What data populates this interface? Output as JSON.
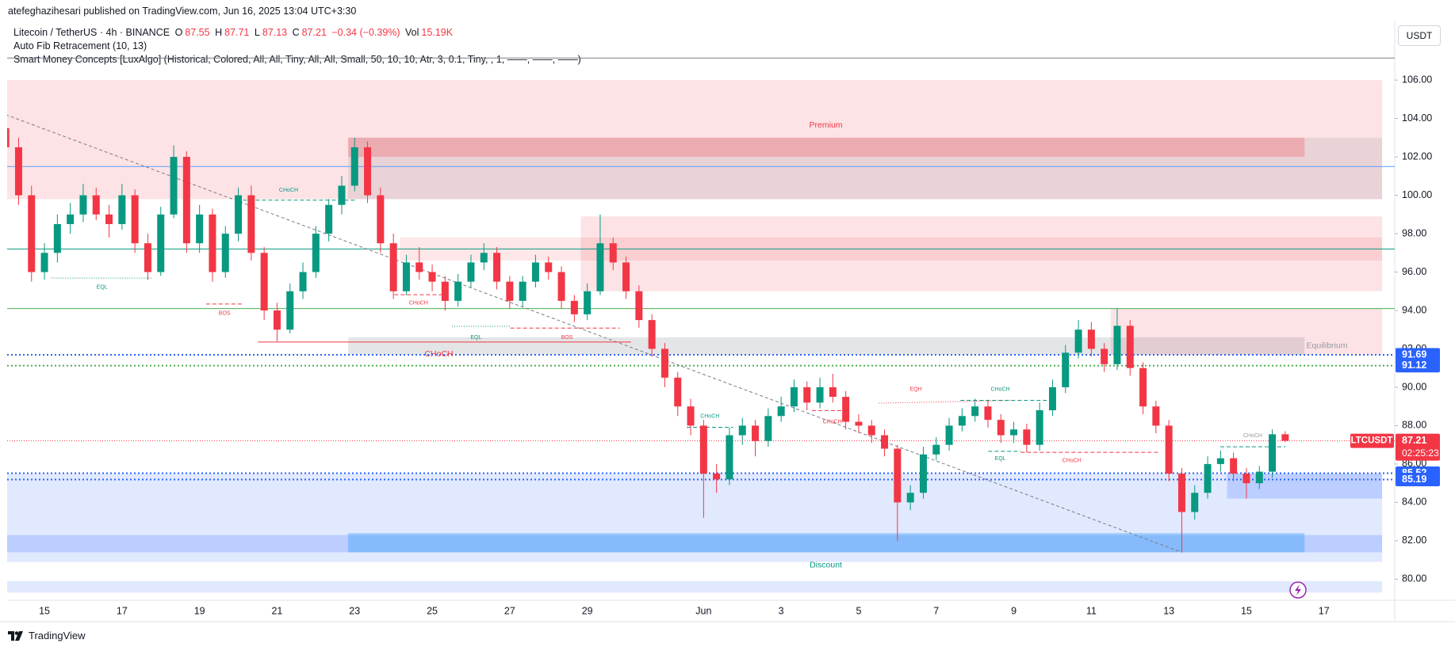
{
  "header": {
    "published": "atefeghazihesari published on TradingView.com, Jun 16, 2025 13:04 UTC+3:30",
    "symbol": "Litecoin / TetherUS · 4h · BINANCE",
    "legend_labels": [
      "O",
      "H",
      "L",
      "C"
    ],
    "change": "−0.34 (−0.39%)",
    "volume_label": "Vol",
    "volume": "15.19K",
    "indicators": [
      "Auto Fib Retracement (10, 13)",
      "Smart Money Concepts [LuxAlgo] (Historical, Colored, All, All, Tiny, All, All, Small, 50, 10, 10, Atr, 3, 0.1, Tiny, , 1, ——, ——, ——)"
    ],
    "currency": "USDT"
  },
  "footer": {
    "brand": "TradingView"
  },
  "chart_data": {
    "type": "candlestick",
    "up_color": "#089981",
    "down_color": "#f23645",
    "categories": [
      null,
      null,
      null,
      "15",
      null,
      null,
      null,
      null,
      null,
      "17",
      null,
      null,
      null,
      null,
      null,
      "19",
      null,
      null,
      null,
      null,
      null,
      "21",
      null,
      null,
      null,
      null,
      null,
      "23",
      null,
      null,
      null,
      null,
      null,
      "25",
      null,
      null,
      null,
      null,
      null,
      "27",
      null,
      null,
      null,
      null,
      null,
      "29",
      null,
      null,
      null,
      null,
      null,
      null,
      null,
      null,
      "Jun",
      null,
      null,
      null,
      null,
      null,
      "3",
      null,
      null,
      null,
      null,
      null,
      "5",
      null,
      null,
      null,
      null,
      null,
      "7",
      null,
      null,
      null,
      null,
      null,
      "9",
      null,
      null,
      null,
      null,
      null,
      "11",
      null,
      null,
      null,
      null,
      null,
      "13",
      null,
      null,
      null,
      null,
      null,
      "15",
      null,
      null,
      null,
      null,
      null,
      "17",
      null,
      null,
      null,
      null
    ],
    "ohlc": [
      [
        103.5,
        106,
        102,
        102.5
      ],
      [
        102.5,
        103,
        99.5,
        100
      ],
      [
        100,
        100.5,
        95.5,
        96
      ],
      [
        96,
        97.5,
        95.6,
        97
      ],
      [
        97,
        99,
        96.5,
        98.5
      ],
      [
        98.5,
        99.6,
        98,
        99
      ],
      [
        99,
        100.6,
        98.6,
        100
      ],
      [
        100,
        100.4,
        98.7,
        99
      ],
      [
        99,
        99.5,
        97.8,
        98.5
      ],
      [
        98.5,
        100.6,
        98.2,
        100
      ],
      [
        100,
        100.3,
        97,
        97.5
      ],
      [
        97.5,
        98,
        95.6,
        96
      ],
      [
        96,
        99.4,
        95.8,
        99
      ],
      [
        99,
        102.6,
        98.8,
        102
      ],
      [
        102,
        102.3,
        97,
        97.5
      ],
      [
        97.5,
        99.5,
        97,
        99
      ],
      [
        99,
        99.3,
        95.5,
        96
      ],
      [
        96,
        98.4,
        95.7,
        98
      ],
      [
        98,
        100.4,
        97.6,
        100
      ],
      [
        100,
        100.5,
        96.6,
        97
      ],
      [
        97,
        97.3,
        93.5,
        94
      ],
      [
        94,
        94.4,
        92.4,
        93
      ],
      [
        93,
        95.4,
        92.8,
        95
      ],
      [
        95,
        96.5,
        94.6,
        96
      ],
      [
        96,
        98.4,
        95.7,
        98
      ],
      [
        98,
        99.8,
        97.6,
        99.5
      ],
      [
        99.5,
        101,
        99,
        100.5
      ],
      [
        100.5,
        103,
        100.2,
        102.5
      ],
      [
        102.5,
        102.8,
        99.6,
        100
      ],
      [
        100,
        100.4,
        97,
        97.5
      ],
      [
        97.5,
        98,
        94.6,
        95
      ],
      [
        95,
        96.9,
        94.8,
        96.5
      ],
      [
        96.5,
        97.3,
        95.6,
        96
      ],
      [
        96,
        96.4,
        95,
        95.5
      ],
      [
        95.5,
        95.8,
        94,
        94.5
      ],
      [
        94.5,
        95.9,
        94.2,
        95.5
      ],
      [
        95.5,
        96.9,
        95.2,
        96.5
      ],
      [
        96.5,
        97.5,
        96.1,
        97
      ],
      [
        97,
        97.3,
        95.1,
        95.5
      ],
      [
        95.5,
        95.8,
        94.1,
        94.5
      ],
      [
        94.5,
        95.8,
        94.2,
        95.5
      ],
      [
        95.5,
        96.9,
        95.2,
        96.5
      ],
      [
        96.5,
        96.8,
        95.6,
        96
      ],
      [
        96,
        96.3,
        94.1,
        94.5
      ],
      [
        94.5,
        94.8,
        93.4,
        93.8
      ],
      [
        93.8,
        95.4,
        93.5,
        95
      ],
      [
        95,
        99,
        94.8,
        97.5
      ],
      [
        97.5,
        97.8,
        96.1,
        96.5
      ],
      [
        96.5,
        96.8,
        94.6,
        95
      ],
      [
        95,
        95.3,
        93.1,
        93.5
      ],
      [
        93.5,
        93.8,
        91.6,
        92
      ],
      [
        92,
        92.3,
        90,
        90.5
      ],
      [
        90.5,
        90.8,
        88.5,
        89
      ],
      [
        89,
        89.4,
        87.5,
        88
      ],
      [
        88,
        88.3,
        83.2,
        85.5
      ],
      [
        85.5,
        86,
        84.5,
        85.2
      ],
      [
        85.2,
        87.9,
        84.9,
        87.5
      ],
      [
        87.5,
        88.4,
        87,
        88
      ],
      [
        88,
        88.3,
        86.4,
        87.2
      ],
      [
        87.2,
        88.9,
        86.9,
        88.5
      ],
      [
        88.5,
        89.5,
        88.2,
        89
      ],
      [
        89,
        90.4,
        88.7,
        90
      ],
      [
        90,
        90.3,
        88.8,
        89.2
      ],
      [
        89.2,
        90.5,
        88.9,
        90
      ],
      [
        90,
        90.7,
        89.2,
        89.5
      ],
      [
        89.5,
        89.8,
        87.8,
        88.2
      ],
      [
        88.2,
        88.6,
        87.6,
        88
      ],
      [
        88,
        88.3,
        87.1,
        87.5
      ],
      [
        87.5,
        87.8,
        86.4,
        86.8
      ],
      [
        86.8,
        87,
        82,
        84
      ],
      [
        84,
        84.9,
        83.6,
        84.5
      ],
      [
        84.5,
        86.9,
        84.2,
        86.5
      ],
      [
        86.5,
        87.4,
        86.2,
        87
      ],
      [
        87,
        88.4,
        86.7,
        88
      ],
      [
        88,
        88.9,
        87.7,
        88.5
      ],
      [
        88.5,
        89.4,
        88.2,
        89
      ],
      [
        89,
        89.3,
        87.9,
        88.3
      ],
      [
        88.3,
        88.6,
        87.1,
        87.5
      ],
      [
        87.5,
        88.2,
        87.1,
        87.8
      ],
      [
        87.8,
        88.1,
        86.6,
        87
      ],
      [
        87,
        89.2,
        86.7,
        88.8
      ],
      [
        88.8,
        90.4,
        88.5,
        90
      ],
      [
        90,
        92.2,
        89.7,
        91.8
      ],
      [
        91.8,
        93.5,
        91.5,
        93
      ],
      [
        93,
        93.4,
        91.6,
        92
      ],
      [
        92,
        92.3,
        90.8,
        91.2
      ],
      [
        91.2,
        94.1,
        90.9,
        93.2
      ],
      [
        93.2,
        93.5,
        90.6,
        91
      ],
      [
        91,
        91.3,
        88.6,
        89
      ],
      [
        89,
        89.3,
        87.6,
        88
      ],
      [
        88,
        88.3,
        85.1,
        85.5
      ],
      [
        85.5,
        85.8,
        81.4,
        83.5
      ],
      [
        83.5,
        84.9,
        83.1,
        84.5
      ],
      [
        84.5,
        86.4,
        84.2,
        86
      ],
      [
        86,
        86.7,
        85.6,
        86.3
      ],
      [
        86.3,
        86.6,
        85.1,
        85.5
      ],
      [
        85.5,
        85.8,
        84.2,
        85
      ],
      [
        85,
        85.9,
        84.7,
        85.6
      ],
      [
        85.6,
        87.8,
        85.3,
        87.55
      ],
      [
        87.55,
        87.71,
        87.13,
        87.21
      ],
      null,
      null,
      null,
      null,
      null,
      null,
      null
    ],
    "ylim": [
      78.9,
      109.1
    ],
    "yticks": [
      {
        "value": 80,
        "label": "80.00"
      },
      {
        "value": 82,
        "label": "82.00"
      },
      {
        "value": 84,
        "label": "84.00"
      },
      {
        "value": 86,
        "label": "86.00"
      },
      {
        "value": 88,
        "label": "88.00"
      },
      {
        "value": 90,
        "label": "90.00"
      },
      {
        "value": 92,
        "label": "92.00"
      },
      {
        "value": 94,
        "label": "94.00"
      },
      {
        "value": 96,
        "label": "96.00"
      },
      {
        "value": 98,
        "label": "98.00"
      },
      {
        "value": 100,
        "label": "100.00"
      },
      {
        "value": 102,
        "label": "102.00"
      },
      {
        "value": 104,
        "label": "104.00"
      },
      {
        "value": 106,
        "label": "106.00"
      }
    ],
    "grid": false,
    "zones": [
      {
        "from": 0,
        "to": 106,
        "low": 99.8,
        "high": 106,
        "color": "rgba(242,54,69,0.14)"
      },
      {
        "from": 27,
        "to": 106,
        "low": 99.8,
        "high": 103,
        "color": "rgba(120,123,134,0.15)"
      },
      {
        "from": 27,
        "to": 100,
        "low": 102,
        "high": 103,
        "color": "rgba(242,54,69,0.25)"
      },
      {
        "from": 45,
        "to": 106,
        "low": 95,
        "high": 98.9,
        "color": "rgba(242,54,69,0.14)"
      },
      {
        "from": 31,
        "to": 106,
        "low": 96.6,
        "high": 97.8,
        "color": "rgba(242,54,69,0.12)"
      },
      {
        "from": 86,
        "to": 106,
        "low": 91.7,
        "high": 94.1,
        "color": "rgba(242,54,69,0.14)"
      },
      {
        "from": 27,
        "to": 100,
        "low": 91.7,
        "high": 92.6,
        "color": "rgba(120,123,134,0.2)"
      },
      {
        "from": 0,
        "to": 106,
        "low": 80.9,
        "high": 85.5,
        "color": "rgba(41,98,255,0.14)"
      },
      {
        "from": 0,
        "to": 106,
        "low": 81.4,
        "high": 82.3,
        "color": "rgba(41,98,255,0.2)"
      },
      {
        "from": 27,
        "to": 100,
        "low": 81.4,
        "high": 82.4,
        "color": "rgba(33,150,243,0.35)"
      },
      {
        "from": 95,
        "to": 106,
        "low": 84.2,
        "high": 85.5,
        "color": "rgba(41,98,255,0.2)"
      },
      {
        "from": 0,
        "to": 106,
        "low": 79.3,
        "high": 79.9,
        "color": "rgba(41,98,255,0.14)"
      }
    ],
    "levels": [
      {
        "value": 107.15,
        "color": "#787b86",
        "style": "solid",
        "tag": false
      },
      {
        "value": 101.5,
        "color": "#5b9cf6",
        "style": "solid",
        "tag": false
      },
      {
        "value": 97.2,
        "color": "#089981",
        "style": "solid",
        "tag": false
      },
      {
        "value": 94.1,
        "color": "#4caf50",
        "style": "solid",
        "tag": false
      },
      {
        "value": 91.69,
        "color": "#2962ff",
        "style": "dotted",
        "tag": true
      },
      {
        "value": 91.12,
        "color": "#4caf50",
        "style": "dotted",
        "tag": true
      },
      {
        "value": 85.52,
        "color": "#2962ff",
        "style": "dotted",
        "tag": true
      },
      {
        "value": 85.19,
        "color": "#2962ff",
        "style": "dotted",
        "tag": true
      }
    ],
    "trendline": {
      "from": [
        0,
        104.2
      ],
      "to": [
        91,
        81.4
      ]
    },
    "last_label": "LTCUSDT",
    "countdown": "02:25:23",
    "annotations": [
      {
        "text": "Premium",
        "color": "#f23645"
      },
      {
        "text": "Equilibrium",
        "color": "#9598a1"
      },
      {
        "text": "Discount",
        "color": "#089981"
      },
      {
        "text": "CHoCH",
        "color": "#089981"
      },
      {
        "text": "EQL",
        "color": "#089981"
      },
      {
        "text": "BOS",
        "color": "#f23645"
      },
      {
        "text": "CHoCH",
        "color": "#f23645"
      },
      {
        "text": "EQL",
        "color": "#089981"
      },
      {
        "text": "BOS",
        "color": "#f23645"
      },
      {
        "text": "CHoCH",
        "color": "#f23645"
      },
      {
        "text": "CHoCH",
        "color": "#089981"
      },
      {
        "text": "CHoCH",
        "color": "#f23645"
      },
      {
        "text": "EQH",
        "color": "#f23645"
      },
      {
        "text": "CHoCH",
        "color": "#089981"
      },
      {
        "text": "EQL",
        "color": "#089981"
      },
      {
        "text": "CHoCH",
        "color": "#f23645"
      },
      {
        "text": "CHoCH",
        "color": "#9598a1"
      }
    ]
  }
}
